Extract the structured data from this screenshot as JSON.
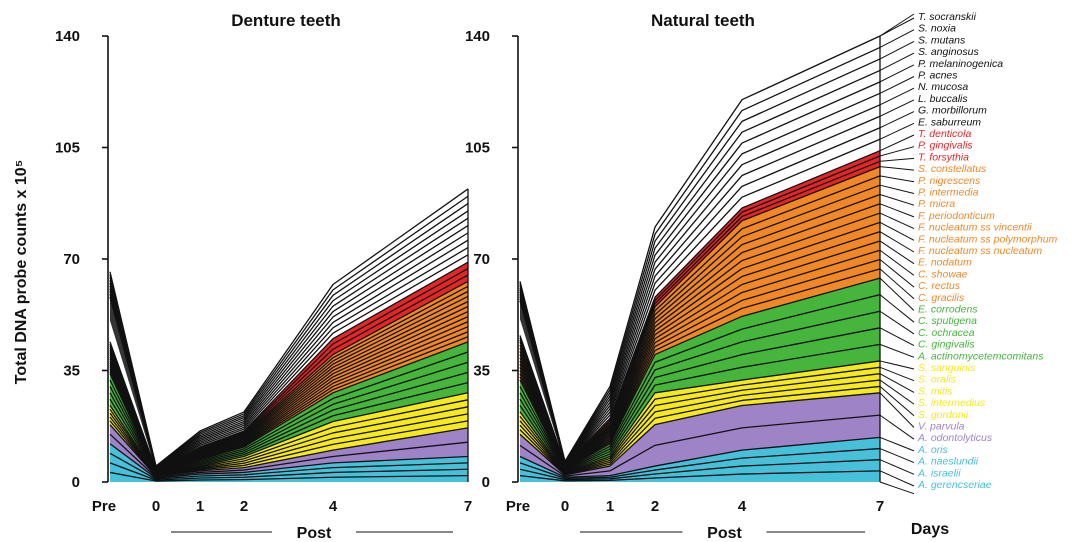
{
  "chart_data": [
    {
      "type": "area",
      "title": "Denture teeth",
      "ylabel": "Total DNA probe counts x 10⁵",
      "xlabel": "Post",
      "x": [
        "Pre",
        "0",
        "1",
        "2",
        "4",
        "7"
      ],
      "yticks": [
        0,
        35,
        70,
        105,
        140
      ],
      "ylim": [
        0,
        140
      ],
      "stacked": true,
      "group_totals": {
        "blue": [
          12,
          1.2,
          2.5,
          3,
          6,
          8
        ],
        "purple": [
          18,
          1.8,
          3.5,
          4.5,
          10,
          17
        ],
        "yellow": [
          24,
          2.3,
          5,
          8,
          19,
          28
        ],
        "green": [
          34,
          3,
          7,
          11,
          28,
          44
        ],
        "orange": [
          42,
          3.6,
          10,
          15,
          40,
          63
        ],
        "red": [
          44,
          3.8,
          11,
          16,
          45,
          69
        ],
        "total": [
          66,
          5,
          16,
          22,
          62,
          92
        ]
      }
    },
    {
      "type": "area",
      "title": "Natural teeth",
      "xlabel": "Post",
      "x": [
        "Pre",
        "0",
        "1",
        "2",
        "4",
        "7"
      ],
      "yticks": [
        0,
        35,
        70,
        105,
        140
      ],
      "ylim": [
        0,
        140
      ],
      "stacked": true,
      "group_totals": {
        "blue": [
          8,
          1.5,
          2,
          5,
          10,
          14
        ],
        "purple": [
          15,
          2.2,
          5,
          18,
          24,
          28
        ],
        "yellow": [
          22,
          3,
          8,
          28,
          32,
          38
        ],
        "green": [
          32,
          4,
          12,
          40,
          52,
          64
        ],
        "orange": [
          44,
          5,
          18,
          55,
          82,
          99
        ],
        "red": [
          46,
          5.5,
          20,
          58,
          86,
          104
        ],
        "total": [
          63,
          6.5,
          30,
          80,
          120,
          140
        ]
      }
    }
  ],
  "days_label": "Days",
  "colors": {
    "blue": "#47c0d9",
    "purple": "#9e84c6",
    "yellow": "#f7ea1c",
    "green": "#45b53b",
    "orange": "#f18826",
    "red": "#e52628",
    "black": "#111111"
  },
  "legend": [
    {
      "label": "T. socranskii",
      "group": "black"
    },
    {
      "label": "S. noxia",
      "group": "black"
    },
    {
      "label": "S. mutans",
      "group": "black"
    },
    {
      "label": "S. anginosus",
      "group": "black"
    },
    {
      "label": "P. melaninogenica",
      "group": "black"
    },
    {
      "label": "P. acnes",
      "group": "black"
    },
    {
      "label": "N. mucosa",
      "group": "black"
    },
    {
      "label": "L. buccalis",
      "group": "black"
    },
    {
      "label": "G. morbillorum",
      "group": "black"
    },
    {
      "label": "E. saburreum",
      "group": "black"
    },
    {
      "label": "T. denticola",
      "group": "red"
    },
    {
      "label": "P. gingivalis",
      "group": "red"
    },
    {
      "label": "T. forsythia",
      "group": "red"
    },
    {
      "label": "S. constellatus",
      "group": "orange"
    },
    {
      "label": "P. nigrescens",
      "group": "orange"
    },
    {
      "label": "P. intermedia",
      "group": "orange"
    },
    {
      "label": "P. micra",
      "group": "orange"
    },
    {
      "label": "F. periodonticum",
      "group": "orange"
    },
    {
      "label": "F. nucleatum ss vincentii",
      "group": "orange"
    },
    {
      "label": "F. nucleatum ss polymorphum",
      "group": "orange"
    },
    {
      "label": "F. nucleatum ss nucleatum",
      "group": "orange"
    },
    {
      "label": "E. nodatum",
      "group": "orange"
    },
    {
      "label": "C. showae",
      "group": "orange"
    },
    {
      "label": "C. rectus",
      "group": "orange"
    },
    {
      "label": "C. gracilis",
      "group": "orange"
    },
    {
      "label": "E. corrodens",
      "group": "green"
    },
    {
      "label": "C. sputigena",
      "group": "green"
    },
    {
      "label": "C. ochracea",
      "group": "green"
    },
    {
      "label": "C. gingivalis",
      "group": "green"
    },
    {
      "label": "A. actinomycetemcomitans",
      "group": "green"
    },
    {
      "label": "S. sanguinis",
      "group": "yellow"
    },
    {
      "label": "S. oralis",
      "group": "yellow"
    },
    {
      "label": "S. mitis",
      "group": "yellow"
    },
    {
      "label": "S. intermedius",
      "group": "yellow"
    },
    {
      "label": "S. gordonii",
      "group": "yellow"
    },
    {
      "label": "V. parvula",
      "group": "purple"
    },
    {
      "label": "A. odontolyticus",
      "group": "purple"
    },
    {
      "label": "A. oris",
      "group": "blue"
    },
    {
      "label": "A. naeslundii",
      "group": "blue"
    },
    {
      "label": "A. israelii",
      "group": "blue"
    },
    {
      "label": "A. gerencseriae",
      "group": "blue"
    }
  ]
}
